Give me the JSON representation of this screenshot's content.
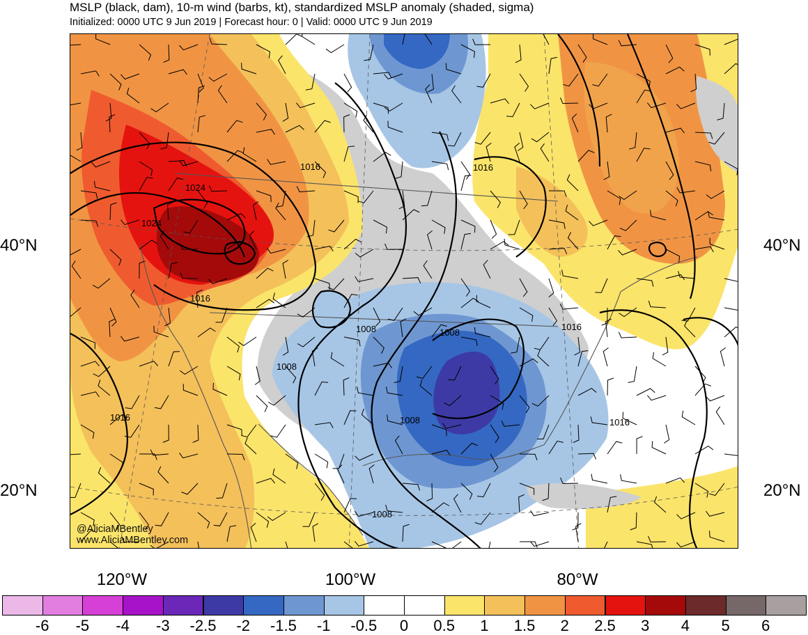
{
  "header": {
    "title": "MSLP (black, dam), 10-m wind (barbs, kt), standardized MSLP anomaly (shaded, sigma)",
    "subtitle": "Initialized: 0000 UTC 9 Jun 2019 | Forecast hour: 0 | Valid: 0000 UTC 9 Jun 2019"
  },
  "axes": {
    "lat_left": [
      "40°N",
      "20°N"
    ],
    "lat_right": [
      "40°N",
      "20°N"
    ],
    "lon": [
      "120°W",
      "100°W",
      "80°W"
    ]
  },
  "contour_labels": [
    "1016",
    "1024",
    "1024",
    "1016",
    "1008",
    "1008",
    "1008",
    "1016",
    "1016",
    "1008",
    "1016",
    "1016",
    "1008"
  ],
  "credit": {
    "handle": "@AliciaMBentley",
    "url": "www.AliciaMBentley.com"
  },
  "colorbar": {
    "labels": [
      "-6",
      "-5",
      "-4",
      "-3",
      "-2.5",
      "-2",
      "-1.5",
      "-1",
      "-0.5",
      "0",
      "0.5",
      "1",
      "1.5",
      "2",
      "2.5",
      "3",
      "4",
      "5",
      "6"
    ],
    "colors": [
      "#ebb8e8",
      "#e27ee0",
      "#d640d6",
      "#a713c9",
      "#6a27b8",
      "#3d3aa6",
      "#3568c2",
      "#6e97d2",
      "#a7c6e6",
      "#ffffff",
      "#ffffff",
      "#fbe46a",
      "#f4c05a",
      "#f09444",
      "#ef5b2f",
      "#e5130f",
      "#a40a0a",
      "#6d2a2a",
      "#766868",
      "#a8a0a0"
    ]
  },
  "map_colors": {
    "land_neutral": "#cfcfcf",
    "contour": "#000000",
    "coast": "#5a5a5a"
  }
}
